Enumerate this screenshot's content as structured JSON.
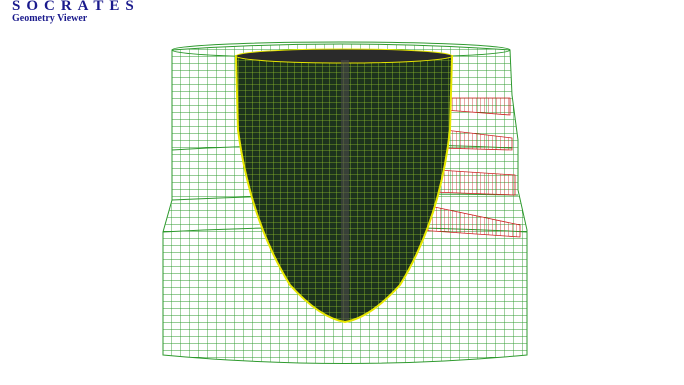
{
  "header": {
    "title": "SOCRATES",
    "subtitle": "Geometry Viewer"
  }
}
